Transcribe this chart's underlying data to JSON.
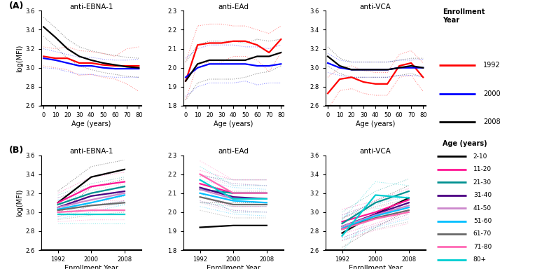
{
  "panel_A": {
    "titles": [
      "anti-EBNA-1",
      "anti-EAd",
      "anti-VCA"
    ],
    "xlabel": "Age (years)",
    "ylabel": "log(MFI)",
    "xlim": [
      -2,
      82
    ],
    "xticks": [
      0,
      10,
      20,
      30,
      40,
      50,
      60,
      70,
      80
    ],
    "age_points": [
      0,
      10,
      20,
      30,
      40,
      50,
      60,
      70,
      80
    ],
    "EBNA1": {
      "1992": {
        "mean": [
          3.12,
          3.1,
          3.1,
          3.05,
          3.05,
          3.03,
          3.02,
          3.02,
          3.02
        ],
        "upper": [
          3.22,
          3.2,
          3.22,
          3.18,
          3.17,
          3.15,
          3.12,
          3.2,
          3.22
        ],
        "lower": [
          3.02,
          3.0,
          2.98,
          2.92,
          2.93,
          2.9,
          2.88,
          2.83,
          2.75
        ]
      },
      "2000": {
        "mean": [
          3.1,
          3.08,
          3.05,
          3.02,
          3.02,
          3.0,
          2.99,
          2.99,
          2.99
        ],
        "upper": [
          3.2,
          3.17,
          3.14,
          3.11,
          3.11,
          3.09,
          3.08,
          3.08,
          3.09
        ],
        "lower": [
          3.0,
          2.99,
          2.96,
          2.93,
          2.93,
          2.91,
          2.9,
          2.9,
          2.9
        ]
      },
      "2008": {
        "mean": [
          3.43,
          3.32,
          3.2,
          3.12,
          3.08,
          3.05,
          3.03,
          3.01,
          3.0
        ],
        "upper": [
          3.53,
          3.42,
          3.3,
          3.22,
          3.18,
          3.15,
          3.13,
          3.11,
          3.1
        ],
        "lower": [
          3.33,
          3.22,
          3.1,
          3.02,
          2.98,
          2.95,
          2.93,
          2.91,
          2.9
        ]
      }
    },
    "EAd": {
      "1992": {
        "mean": [
          1.93,
          2.12,
          2.13,
          2.13,
          2.14,
          2.14,
          2.12,
          2.08,
          2.15
        ],
        "upper": [
          2.03,
          2.22,
          2.23,
          2.23,
          2.22,
          2.22,
          2.2,
          2.18,
          2.22
        ],
        "lower": [
          1.83,
          2.02,
          2.03,
          2.03,
          2.06,
          2.06,
          2.04,
          1.98,
          2.08
        ]
      },
      "2000": {
        "mean": [
          1.95,
          2.0,
          2.02,
          2.02,
          2.02,
          2.02,
          2.01,
          2.01,
          2.02
        ],
        "upper": [
          2.05,
          2.1,
          2.12,
          2.12,
          2.12,
          2.11,
          2.11,
          2.1,
          2.12
        ],
        "lower": [
          1.85,
          1.9,
          1.92,
          1.92,
          1.92,
          1.93,
          1.91,
          1.92,
          1.92
        ]
      },
      "2008": {
        "mean": [
          1.93,
          2.02,
          2.04,
          2.04,
          2.04,
          2.04,
          2.06,
          2.06,
          2.08
        ],
        "upper": [
          2.03,
          2.12,
          2.14,
          2.14,
          2.14,
          2.13,
          2.15,
          2.14,
          2.15
        ],
        "lower": [
          1.83,
          1.92,
          1.94,
          1.94,
          1.94,
          1.95,
          1.97,
          1.98,
          2.01
        ]
      }
    },
    "VCA": {
      "1992": {
        "mean": [
          2.73,
          2.88,
          2.9,
          2.85,
          2.83,
          2.83,
          3.02,
          3.05,
          2.9
        ],
        "upper": [
          2.9,
          3.0,
          3.02,
          2.97,
          2.95,
          2.95,
          3.14,
          3.18,
          3.05
        ],
        "lower": [
          2.56,
          2.76,
          2.78,
          2.73,
          2.71,
          2.71,
          2.9,
          2.92,
          2.75
        ]
      },
      "2000": {
        "mean": [
          3.05,
          3.0,
          2.98,
          2.98,
          2.98,
          2.98,
          3.0,
          3.0,
          3.0
        ],
        "upper": [
          3.15,
          3.08,
          3.06,
          3.06,
          3.06,
          3.06,
          3.08,
          3.08,
          3.09
        ],
        "lower": [
          2.95,
          2.92,
          2.9,
          2.9,
          2.9,
          2.9,
          2.92,
          2.92,
          2.91
        ]
      },
      "2008": {
        "mean": [
          3.12,
          3.02,
          2.98,
          2.98,
          2.98,
          2.98,
          3.0,
          3.02,
          3.0
        ],
        "upper": [
          3.22,
          3.1,
          3.06,
          3.06,
          3.06,
          3.06,
          3.08,
          3.1,
          3.1
        ],
        "lower": [
          3.02,
          2.94,
          2.9,
          2.9,
          2.9,
          2.9,
          2.92,
          2.94,
          2.9
        ]
      }
    },
    "ylim_EBNA1": [
      2.6,
      3.6
    ],
    "ylim_EAd": [
      1.8,
      2.3
    ],
    "ylim_VCA": [
      2.6,
      3.6
    ],
    "yticks_EBNA1": [
      2.6,
      2.8,
      3.0,
      3.2,
      3.4,
      3.6
    ],
    "yticks_EAd": [
      1.8,
      1.9,
      2.0,
      2.1,
      2.2,
      2.3
    ],
    "yticks_VCA": [
      2.6,
      2.8,
      3.0,
      3.2,
      3.4,
      3.6
    ]
  },
  "panel_B": {
    "titles": [
      "anti-EBNA-1",
      "anti-EAd",
      "anti-VCA"
    ],
    "xlabel": "Enrollment Year",
    "ylabel": "log(MFI)",
    "year_points": [
      1992,
      2000,
      2008
    ],
    "xticks": [
      1992,
      2000,
      2008
    ],
    "EBNA1": {
      "2-10": {
        "mean": [
          3.1,
          3.37,
          3.45
        ],
        "upper": [
          3.22,
          3.48,
          3.55
        ],
        "lower": [
          2.98,
          3.26,
          3.35
        ]
      },
      "11-20": {
        "mean": [
          3.1,
          3.27,
          3.32
        ],
        "upper": [
          3.2,
          3.37,
          3.42
        ],
        "lower": [
          3.0,
          3.17,
          3.22
        ]
      },
      "21-30": {
        "mean": [
          3.08,
          3.2,
          3.27
        ],
        "upper": [
          3.18,
          3.3,
          3.37
        ],
        "lower": [
          2.98,
          3.1,
          3.17
        ]
      },
      "31-40": {
        "mean": [
          3.05,
          3.17,
          3.22
        ],
        "upper": [
          3.15,
          3.27,
          3.32
        ],
        "lower": [
          2.95,
          3.07,
          3.12
        ]
      },
      "41-50": {
        "mean": [
          3.05,
          3.13,
          3.2
        ],
        "upper": [
          3.15,
          3.23,
          3.3
        ],
        "lower": [
          2.95,
          3.03,
          3.1
        ]
      },
      "51-60": {
        "mean": [
          3.03,
          3.1,
          3.18
        ],
        "upper": [
          3.13,
          3.2,
          3.28
        ],
        "lower": [
          2.93,
          3.0,
          3.08
        ]
      },
      "61-70": {
        "mean": [
          3.02,
          3.07,
          3.1
        ],
        "upper": [
          3.12,
          3.17,
          3.2
        ],
        "lower": [
          2.92,
          2.97,
          3.0
        ]
      },
      "71-80": {
        "mean": [
          3.0,
          3.02,
          3.02
        ],
        "upper": [
          3.1,
          3.12,
          3.12
        ],
        "lower": [
          2.9,
          2.92,
          2.92
        ]
      },
      "80+": {
        "mean": [
          2.98,
          2.98,
          2.98
        ],
        "upper": [
          3.08,
          3.08,
          3.08
        ],
        "lower": [
          2.88,
          2.88,
          2.88
        ]
      }
    },
    "EAd": {
      "2-10": {
        "mean": [
          1.92,
          1.93,
          1.93
        ],
        "upper": [
          2.05,
          2.05,
          2.05
        ],
        "lower": [
          1.8,
          1.8,
          1.8
        ]
      },
      "11-20": {
        "mean": [
          2.15,
          2.1,
          2.1
        ],
        "upper": [
          2.22,
          2.17,
          2.17
        ],
        "lower": [
          2.08,
          2.03,
          2.03
        ]
      },
      "21-30": {
        "mean": [
          2.12,
          2.1,
          2.1
        ],
        "upper": [
          2.19,
          2.17,
          2.17
        ],
        "lower": [
          2.05,
          2.03,
          2.03
        ]
      },
      "31-40": {
        "mean": [
          2.13,
          2.08,
          2.07
        ],
        "upper": [
          2.2,
          2.15,
          2.14
        ],
        "lower": [
          2.06,
          2.01,
          2.0
        ]
      },
      "41-50": {
        "mean": [
          2.12,
          2.07,
          2.07
        ],
        "upper": [
          2.19,
          2.14,
          2.14
        ],
        "lower": [
          2.05,
          2.0,
          2.0
        ]
      },
      "51-60": {
        "mean": [
          2.1,
          2.06,
          2.05
        ],
        "upper": [
          2.17,
          2.13,
          2.12
        ],
        "lower": [
          2.03,
          1.99,
          1.98
        ]
      },
      "61-70": {
        "mean": [
          2.08,
          2.04,
          2.04
        ],
        "upper": [
          2.15,
          2.11,
          2.11
        ],
        "lower": [
          2.01,
          1.97,
          1.97
        ]
      },
      "71-80": {
        "mean": [
          2.2,
          2.1,
          2.1
        ],
        "upper": [
          2.27,
          2.17,
          2.17
        ],
        "lower": [
          2.13,
          2.03,
          2.03
        ]
      },
      "80+": {
        "mean": [
          2.17,
          2.07,
          2.07
        ],
        "upper": [
          2.24,
          2.14,
          2.14
        ],
        "lower": [
          2.1,
          2.0,
          2.0
        ]
      }
    },
    "VCA": {
      "2-10": {
        "mean": [
          2.78,
          2.98,
          3.15
        ],
        "upper": [
          2.93,
          3.12,
          3.28
        ],
        "lower": [
          2.63,
          2.84,
          3.02
        ]
      },
      "11-20": {
        "mean": [
          2.9,
          3.0,
          3.13
        ],
        "upper": [
          3.03,
          3.12,
          3.25
        ],
        "lower": [
          2.77,
          2.88,
          3.01
        ]
      },
      "21-30": {
        "mean": [
          2.88,
          3.1,
          3.22
        ],
        "upper": [
          3.0,
          3.22,
          3.35
        ],
        "lower": [
          2.76,
          2.98,
          3.09
        ]
      },
      "31-40": {
        "mean": [
          2.85,
          2.98,
          3.1
        ],
        "upper": [
          2.97,
          3.1,
          3.22
        ],
        "lower": [
          2.73,
          2.86,
          2.98
        ]
      },
      "41-50": {
        "mean": [
          2.85,
          2.97,
          3.07
        ],
        "upper": [
          2.97,
          3.09,
          3.19
        ],
        "lower": [
          2.73,
          2.85,
          2.95
        ]
      },
      "51-60": {
        "mean": [
          2.83,
          2.96,
          3.05
        ],
        "upper": [
          2.95,
          3.08,
          3.17
        ],
        "lower": [
          2.71,
          2.84,
          2.93
        ]
      },
      "61-70": {
        "mean": [
          2.82,
          2.94,
          3.02
        ],
        "upper": [
          2.94,
          3.06,
          3.14
        ],
        "lower": [
          2.7,
          2.82,
          2.9
        ]
      },
      "71-80": {
        "mean": [
          2.82,
          2.93,
          3.0
        ],
        "upper": [
          2.94,
          3.05,
          3.12
        ],
        "lower": [
          2.7,
          2.81,
          2.88
        ]
      },
      "80+": {
        "mean": [
          2.75,
          3.18,
          3.15
        ],
        "upper": [
          2.92,
          3.32,
          3.28
        ],
        "lower": [
          2.58,
          3.04,
          3.02
        ]
      }
    },
    "ylim_EBNA1": [
      2.6,
      3.6
    ],
    "ylim_EAd": [
      1.8,
      2.3
    ],
    "ylim_VCA": [
      2.6,
      3.6
    ],
    "yticks_EBNA1": [
      2.6,
      2.8,
      3.0,
      3.2,
      3.4,
      3.6
    ],
    "yticks_EAd": [
      1.8,
      1.9,
      2.0,
      2.1,
      2.2,
      2.3
    ],
    "yticks_VCA": [
      2.6,
      2.8,
      3.0,
      3.2,
      3.4,
      3.6
    ]
  },
  "legend_A": {
    "title": "Enrollment\nYear",
    "entries": [
      "1992",
      "2000",
      "2008"
    ],
    "colors": [
      "#FF0000",
      "#0000FF",
      "#000000"
    ]
  },
  "legend_B": {
    "title": "Age (years)",
    "entries": [
      "2-10",
      "11-20",
      "21-30",
      "31-40",
      "41-50",
      "51-60",
      "61-70",
      "71-80",
      "80+"
    ],
    "colors": [
      "#000000",
      "#FF1493",
      "#009090",
      "#4B0082",
      "#CC88CC",
      "#00BFFF",
      "#696969",
      "#FF69B4",
      "#00CED1"
    ]
  }
}
